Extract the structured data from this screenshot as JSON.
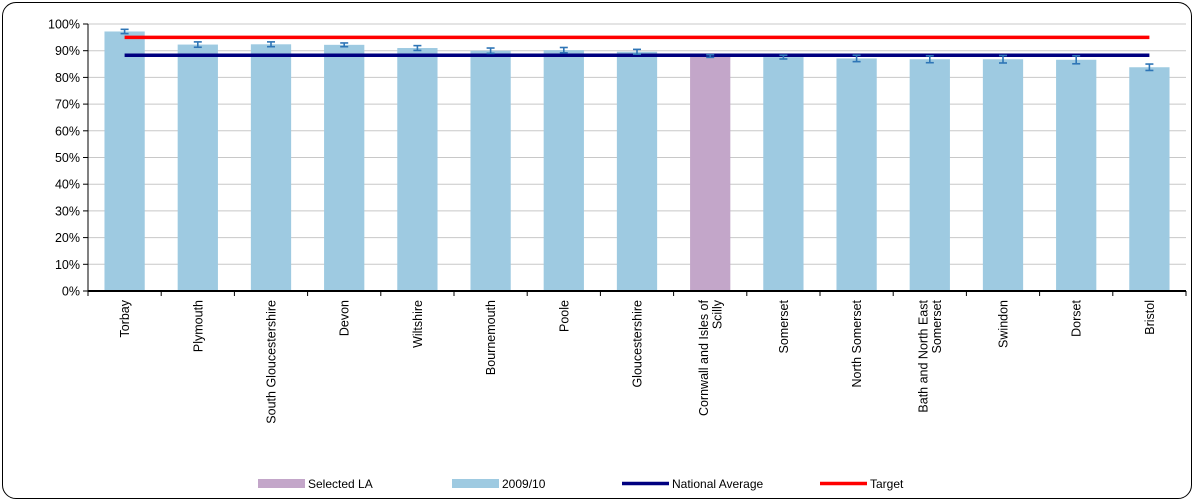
{
  "chart_data": {
    "type": "bar",
    "categories": [
      "Torbay",
      "Plymouth",
      "South Gloucestershire",
      "Devon",
      "Wiltshire",
      "Bournemouth",
      "Poole",
      "Gloucestershire",
      "Cornwall and Isles of Scilly",
      "Somerset",
      "North Somerset",
      "Bath and North East Somerset",
      "Swindon",
      "Dorset",
      "Bristol"
    ],
    "category_label_lines": [
      [
        "Torbay"
      ],
      [
        "Plymouth"
      ],
      [
        "South Gloucestershire"
      ],
      [
        "Devon"
      ],
      [
        "Wiltshire"
      ],
      [
        "Bournemouth"
      ],
      [
        "Poole"
      ],
      [
        "Gloucestershire"
      ],
      [
        "Cornwall and Isles of",
        "Scilly"
      ],
      [
        "Somerset"
      ],
      [
        "North Somerset"
      ],
      [
        "Bath and North East",
        "Somerset"
      ],
      [
        "Swindon"
      ],
      [
        "Dorset"
      ],
      [
        "Bristol"
      ]
    ],
    "series": [
      {
        "name": "2009/10",
        "values": [
          97.2,
          92.3,
          92.4,
          92.2,
          91.0,
          90.0,
          90.2,
          89.6,
          88.0,
          87.6,
          87.1,
          86.8,
          86.8,
          86.6,
          83.8
        ],
        "error": [
          0.8,
          1.0,
          0.9,
          0.7,
          0.9,
          1.0,
          1.0,
          0.9,
          0.5,
          0.7,
          1.2,
          1.3,
          1.4,
          1.5,
          1.2
        ],
        "color": "#9ecae1"
      }
    ],
    "selected_index": 8,
    "selected_color": "#c3a6c9",
    "lines": [
      {
        "name": "National Average",
        "value": 88.3,
        "color": "#000080"
      },
      {
        "name": "Target",
        "value": 95.0,
        "color": "#ff0000"
      }
    ],
    "legend": [
      {
        "label": "Selected LA",
        "kind": "box",
        "color": "#c3a6c9"
      },
      {
        "label": "2009/10",
        "kind": "box",
        "color": "#9ecae1"
      },
      {
        "label": "National Average",
        "kind": "line",
        "color": "#000080"
      },
      {
        "label": "Target",
        "kind": "line",
        "color": "#ff0000"
      }
    ],
    "error_bar_color": "#2e75b6",
    "ylim": [
      0,
      100
    ],
    "yticks": [
      0,
      10,
      20,
      30,
      40,
      50,
      60,
      70,
      80,
      90,
      100
    ],
    "ytick_suffix": "%",
    "grid": true,
    "legend_position": "bottom",
    "title": "",
    "xlabel": "",
    "ylabel": ""
  }
}
